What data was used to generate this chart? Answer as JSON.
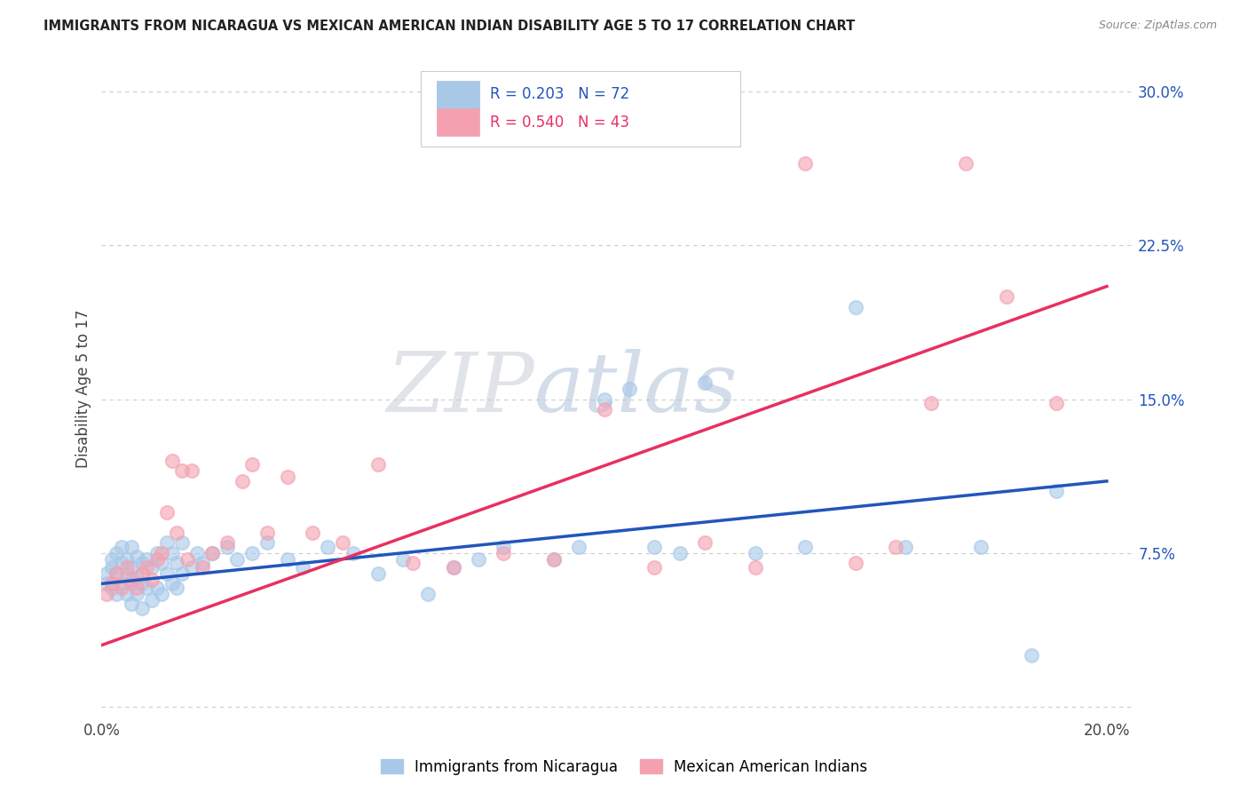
{
  "title": "IMMIGRANTS FROM NICARAGUA VS MEXICAN AMERICAN INDIAN DISABILITY AGE 5 TO 17 CORRELATION CHART",
  "source": "Source: ZipAtlas.com",
  "ylabel": "Disability Age 5 to 17",
  "xlim": [
    0.0,
    0.205
  ],
  "ylim": [
    -0.005,
    0.315
  ],
  "x_tick_positions": [
    0.0,
    0.04,
    0.08,
    0.12,
    0.16,
    0.2
  ],
  "x_tick_labels": [
    "0.0%",
    "",
    "",
    "",
    "",
    "20.0%"
  ],
  "y_tick_positions": [
    0.0,
    0.075,
    0.15,
    0.225,
    0.3
  ],
  "y_tick_labels": [
    "",
    "7.5%",
    "15.0%",
    "22.5%",
    "30.0%"
  ],
  "blue_scatter_color": "#a8c8e8",
  "pink_scatter_color": "#f4a0b0",
  "blue_line_color": "#2255bb",
  "pink_line_color": "#e83060",
  "grid_color": "#cccccc",
  "background_color": "#ffffff",
  "watermark_zip_color": "#c8d0dc",
  "watermark_atlas_color": "#b8c8dc",
  "legend_R_blue": "0.203",
  "legend_N_blue": "72",
  "legend_R_pink": "0.540",
  "legend_N_pink": "43",
  "blue_trend_x0": 0.0,
  "blue_trend_y0": 0.06,
  "blue_trend_x1": 0.2,
  "blue_trend_y1": 0.11,
  "pink_trend_x0": 0.0,
  "pink_trend_y0": 0.03,
  "pink_trend_x1": 0.2,
  "pink_trend_y1": 0.205,
  "scatter_blue_x": [
    0.001,
    0.001,
    0.002,
    0.002,
    0.002,
    0.003,
    0.003,
    0.003,
    0.004,
    0.004,
    0.004,
    0.005,
    0.005,
    0.005,
    0.006,
    0.006,
    0.006,
    0.006,
    0.007,
    0.007,
    0.007,
    0.008,
    0.008,
    0.008,
    0.009,
    0.009,
    0.01,
    0.01,
    0.011,
    0.011,
    0.012,
    0.012,
    0.013,
    0.013,
    0.014,
    0.014,
    0.015,
    0.015,
    0.016,
    0.016,
    0.018,
    0.019,
    0.02,
    0.022,
    0.025,
    0.027,
    0.03,
    0.033,
    0.037,
    0.04,
    0.045,
    0.05,
    0.055,
    0.06,
    0.065,
    0.07,
    0.075,
    0.08,
    0.09,
    0.095,
    0.1,
    0.105,
    0.11,
    0.115,
    0.12,
    0.13,
    0.14,
    0.15,
    0.16,
    0.175,
    0.185,
    0.19
  ],
  "scatter_blue_y": [
    0.06,
    0.065,
    0.058,
    0.068,
    0.072,
    0.055,
    0.065,
    0.075,
    0.06,
    0.07,
    0.078,
    0.055,
    0.065,
    0.072,
    0.05,
    0.06,
    0.068,
    0.078,
    0.055,
    0.063,
    0.073,
    0.048,
    0.06,
    0.07,
    0.058,
    0.072,
    0.052,
    0.068,
    0.058,
    0.075,
    0.055,
    0.07,
    0.065,
    0.08,
    0.06,
    0.075,
    0.058,
    0.07,
    0.065,
    0.08,
    0.068,
    0.075,
    0.07,
    0.075,
    0.078,
    0.072,
    0.075,
    0.08,
    0.072,
    0.068,
    0.078,
    0.075,
    0.065,
    0.072,
    0.055,
    0.068,
    0.072,
    0.078,
    0.072,
    0.078,
    0.15,
    0.155,
    0.078,
    0.075,
    0.158,
    0.075,
    0.078,
    0.195,
    0.078,
    0.078,
    0.025,
    0.105
  ],
  "scatter_pink_x": [
    0.001,
    0.002,
    0.003,
    0.004,
    0.005,
    0.006,
    0.007,
    0.008,
    0.009,
    0.01,
    0.011,
    0.012,
    0.013,
    0.014,
    0.015,
    0.016,
    0.017,
    0.018,
    0.02,
    0.022,
    0.025,
    0.028,
    0.03,
    0.033,
    0.037,
    0.042,
    0.048,
    0.055,
    0.062,
    0.07,
    0.08,
    0.09,
    0.1,
    0.11,
    0.12,
    0.13,
    0.14,
    0.15,
    0.158,
    0.165,
    0.172,
    0.18,
    0.19
  ],
  "scatter_pink_y": [
    0.055,
    0.06,
    0.065,
    0.058,
    0.068,
    0.062,
    0.058,
    0.065,
    0.068,
    0.062,
    0.072,
    0.075,
    0.095,
    0.12,
    0.085,
    0.115,
    0.072,
    0.115,
    0.068,
    0.075,
    0.08,
    0.11,
    0.118,
    0.085,
    0.112,
    0.085,
    0.08,
    0.118,
    0.07,
    0.068,
    0.075,
    0.072,
    0.145,
    0.068,
    0.08,
    0.068,
    0.265,
    0.07,
    0.078,
    0.148,
    0.265,
    0.2,
    0.148
  ]
}
